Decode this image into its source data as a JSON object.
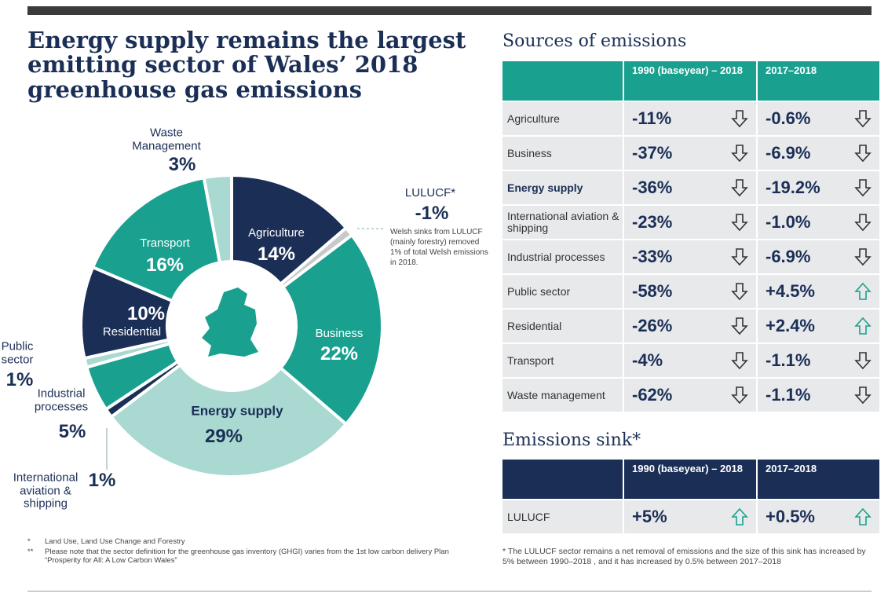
{
  "title": "Energy supply remains the largest emitting sector of Wales’ 2018 greenhouse gas emissions",
  "chart_data": {
    "type": "pie",
    "categories": [
      "Agriculture",
      "LULUCF*",
      "Business",
      "Energy supply",
      "International aviation & shipping",
      "Industrial processes",
      "Public sector",
      "Residential",
      "Transport",
      "Waste Management"
    ],
    "values": [
      14,
      -1,
      22,
      29,
      1,
      5,
      1,
      10,
      16,
      3
    ],
    "value_labels": [
      "14%",
      "-1%",
      "22%",
      "29%",
      "1%",
      "5%",
      "1%",
      "10%",
      "16%",
      "3%"
    ],
    "colors": [
      "#1b2f56",
      "#c8c9cb",
      "#1aa08f",
      "#a9d9d1",
      "#1b2f56",
      "#1aa08f",
      "#a9d9d1",
      "#1b2f56",
      "#1aa08f",
      "#a9d9d1"
    ],
    "annotation": "Welsh sinks from LULUCF (mainly forestry) removed 1% of total Welsh emissions in 2018."
  },
  "sources": {
    "title": "Sources of emissions",
    "header": [
      "1990 (baseyear) – 2018",
      "2017–2018"
    ],
    "rows": [
      [
        "Agriculture",
        "-11%",
        "-0.6%"
      ],
      [
        "Business",
        "-37%",
        "-6.9%"
      ],
      [
        "Energy supply",
        "-36%",
        "-19.2%"
      ],
      [
        "International aviation & shipping",
        "-23%",
        "-1.0%"
      ],
      [
        "Industrial processes",
        "-33%",
        "-6.9%"
      ],
      [
        "Public sector",
        "-58%",
        "+4.5%"
      ],
      [
        "Residential",
        "-26%",
        "+2.4%"
      ],
      [
        "Transport",
        "-4%",
        "-1.1%"
      ],
      [
        "Waste management",
        "-62%",
        "-1.1%"
      ]
    ]
  },
  "sink": {
    "title": "Emissions sink*",
    "header": [
      "1990 (baseyear) – 2018",
      "2017–2018"
    ],
    "rows": [
      [
        "LULUCF",
        "+5%",
        "+0.5%"
      ]
    ],
    "note": "* The LULUCF sector remains a net removal of emissions and the size of this sink has increased by 5% between 1990–2018 , and it has increased by 0.5% between 2017–2018"
  },
  "footnotes": [
    [
      "*",
      "Land Use, Land Use Change and Forestry"
    ],
    [
      "**",
      "Please note that the sector definition for the greenhouse gas inventory (GHGI) varies from the 1st low carbon delivery Plan “Prosperity for All: A Low Carbon Wales”"
    ]
  ]
}
